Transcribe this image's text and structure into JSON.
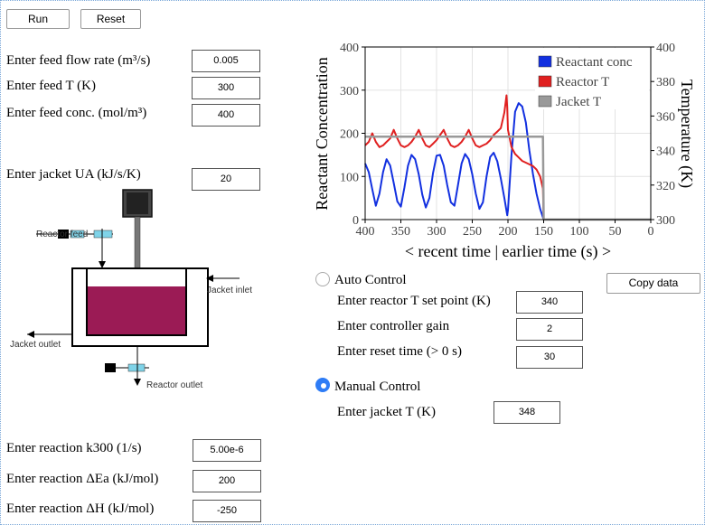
{
  "toolbar": {
    "run_label": "Run",
    "reset_label": "Reset"
  },
  "feed": {
    "flow_label": "Enter feed flow rate (m³/s)",
    "flow_value": "0.005",
    "temp_label": "Enter feed T (K)",
    "temp_value": "300",
    "conc_label": "Enter feed conc. (mol/m³)",
    "conc_value": "400"
  },
  "jacket": {
    "ua_label": "Enter jacket UA (kJ/s/K)",
    "ua_value": "20"
  },
  "diagram": {
    "reactor_feed": "Reactor feed",
    "jacket_inlet": "Jacket inlet",
    "jacket_outlet": "Jacket outlet",
    "reactor_outlet": "Reactor outlet",
    "liquid_color": "#9b1b55",
    "valve_color": "#7fd3e8"
  },
  "reaction": {
    "k300_label": "Enter reaction k300 (1/s)",
    "k300_value": "5.00e-6",
    "ea_label": "Enter reaction ΔEa (kJ/mol)",
    "ea_value": "200",
    "dh_label": "Enter reaction ΔH (kJ/mol)",
    "dh_value": "-250"
  },
  "control": {
    "copy_label": "Copy data",
    "auto_label": "Auto Control",
    "auto_selected": false,
    "setpoint_label": "Enter reactor T set point (K)",
    "setpoint_value": "340",
    "gain_label": "Enter controller gain",
    "gain_value": "2",
    "reset_label": "Enter reset time (> 0 s)",
    "reset_value": "30",
    "manual_label": "Manual Control",
    "manual_selected": true,
    "jacket_t_label": "Enter jacket T (K)",
    "jacket_t_value": "348"
  },
  "chart_data": {
    "type": "line",
    "xlabel": "< recent time | earlier time (s) >",
    "ylabel": "Reactant Concentration",
    "y2label": "Temperature (K)",
    "xlim": [
      400,
      0
    ],
    "ylim": [
      0,
      400
    ],
    "y2lim": [
      300,
      400
    ],
    "x_ticks": [
      400,
      350,
      300,
      250,
      200,
      150,
      100,
      50,
      0
    ],
    "y_ticks": [
      0,
      100,
      200,
      300,
      400
    ],
    "y2_ticks": [
      300,
      320,
      340,
      360,
      380,
      400
    ],
    "grid": true,
    "legend_position": "top-right",
    "series": [
      {
        "name": "Reactant conc",
        "color": "#1230e0",
        "axis": "left",
        "x": [
          400,
          395,
          390,
          385,
          380,
          375,
          370,
          365,
          360,
          355,
          350,
          345,
          340,
          335,
          330,
          325,
          320,
          315,
          310,
          305,
          300,
          295,
          290,
          285,
          280,
          275,
          270,
          265,
          260,
          255,
          250,
          245,
          240,
          235,
          230,
          225,
          220,
          215,
          210,
          205,
          201,
          200,
          195,
          190,
          185,
          180,
          175,
          170,
          165,
          160,
          155,
          151,
          150,
          100,
          50,
          0
        ],
        "y": [
          130,
          110,
          70,
          32,
          60,
          110,
          140,
          125,
          85,
          42,
          30,
          75,
          125,
          150,
          140,
          105,
          58,
          28,
          50,
          108,
          148,
          150,
          125,
          80,
          40,
          32,
          80,
          130,
          152,
          140,
          105,
          60,
          25,
          40,
          100,
          145,
          155,
          135,
          95,
          50,
          10,
          22,
          150,
          250,
          270,
          262,
          225,
          160,
          105,
          60,
          25,
          5,
          0,
          0,
          0,
          0
        ]
      },
      {
        "name": "Reactor T",
        "color": "#e02020",
        "axis": "right",
        "x": [
          400,
          395,
          390,
          385,
          380,
          375,
          370,
          365,
          360,
          355,
          350,
          345,
          340,
          335,
          330,
          325,
          320,
          315,
          310,
          305,
          300,
          295,
          290,
          285,
          280,
          275,
          270,
          265,
          260,
          255,
          250,
          245,
          240,
          235,
          230,
          225,
          220,
          215,
          210,
          205,
          202,
          201,
          200,
          195,
          190,
          185,
          180,
          175,
          170,
          165,
          160,
          155,
          151,
          150,
          100,
          50,
          0
        ],
        "y": [
          343,
          345,
          350,
          345,
          342,
          343,
          345,
          347,
          352,
          347,
          343,
          342,
          343,
          345,
          348,
          352,
          347,
          343,
          342,
          344,
          346,
          349,
          352,
          347,
          343,
          342,
          343,
          345,
          348,
          352,
          347,
          343,
          342,
          343,
          344,
          346,
          349,
          351,
          353,
          362,
          372,
          365,
          352,
          342,
          338,
          336,
          334,
          333,
          332,
          331,
          329,
          325,
          318,
          300,
          300,
          300,
          300
        ]
      },
      {
        "name": "Jacket T",
        "color": "#999999",
        "axis": "right",
        "x": [
          400,
          151,
          150,
          100,
          50,
          0
        ],
        "y": [
          348,
          348,
          300,
          300,
          300,
          300
        ]
      }
    ]
  }
}
